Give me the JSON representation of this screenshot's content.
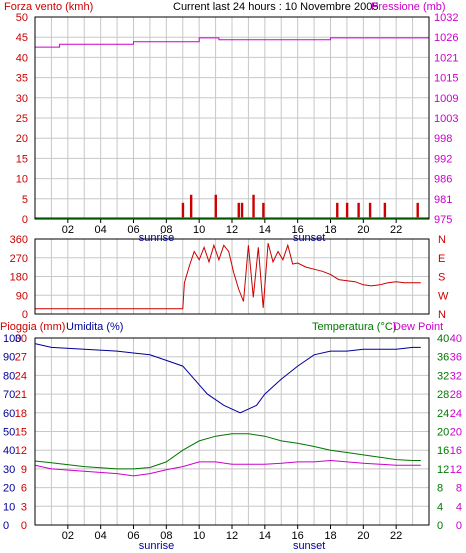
{
  "panel1": {
    "left_label": "Forza vento (kmh)",
    "title": "Current last 24 hours : 10 Novembre 2005",
    "right_label": "Pressione (mb)",
    "left_ticks": [
      "0",
      "5",
      "10",
      "15",
      "20",
      "25",
      "30",
      "35",
      "40",
      "45",
      "50"
    ],
    "right_ticks": [
      "975",
      "981",
      "986",
      "992",
      "998",
      "1003",
      "1009",
      "1015",
      "1021",
      "1026",
      "1032"
    ],
    "x_ticks": [
      "02",
      "04",
      "06",
      "08",
      "10",
      "12",
      "14",
      "16",
      "18",
      "20",
      "22"
    ],
    "sunrise": "sunrise",
    "sunset": "sunset"
  },
  "panel2": {
    "left_ticks": [
      "0",
      "90",
      "180",
      "270",
      "360"
    ],
    "right_ticks": [
      "N",
      "W",
      "S",
      "E",
      "N"
    ]
  },
  "panel3": {
    "pioggia_label": "Pioggia (mm)",
    "umidita_label": "Umidita (%)",
    "temp_label": "Temperatura (°C)",
    "dew_label": "Dew Point",
    "left_ticks_a": [
      "0",
      "10",
      "20",
      "30",
      "40",
      "50",
      "60",
      "70",
      "80",
      "90",
      "100"
    ],
    "left_ticks_b": [
      "0",
      "3",
      "6",
      "9",
      "12",
      "15",
      "18",
      "21",
      "24",
      "27",
      "30"
    ],
    "right_ticks_a": [
      "0",
      "4",
      "8",
      "12",
      "16",
      "20",
      "24",
      "28",
      "32",
      "36",
      "40"
    ],
    "right_ticks_b": [
      "0",
      "4",
      "8",
      "12",
      "16",
      "20",
      "24",
      "28",
      "32",
      "36",
      "40"
    ],
    "x_ticks": [
      "02",
      "04",
      "06",
      "08",
      "10",
      "12",
      "14",
      "16",
      "18",
      "20",
      "22"
    ],
    "sunrise": "sunrise",
    "sunset": "sunset"
  },
  "colors": {
    "wind": "#cc0000",
    "pressure": "#cc00cc",
    "humidity": "#000099",
    "temperature": "#007700",
    "dewpoint": "#cc00cc",
    "rain": "#cc0000",
    "grid": "#c8c8c8"
  },
  "chart_data": [
    {
      "type": "bar",
      "title": "Current last 24 hours : 10 Novembre 2005",
      "xlabel": "",
      "ylabel": "Forza vento (kmh)",
      "ylim": [
        0,
        50
      ],
      "y2label": "Pressione (mb)",
      "y2lim": [
        975,
        1032
      ],
      "series": [
        {
          "name": "Forza vento (kmh)",
          "kind": "bar",
          "x": [
            9.0,
            9.5,
            11.0,
            12.4,
            12.6,
            13.3,
            13.9,
            18.4,
            19.0,
            19.7,
            20.4,
            21.3,
            23.3
          ],
          "values": [
            4,
            6,
            6,
            4,
            4,
            6,
            4,
            4,
            4,
            4,
            4,
            4,
            4
          ]
        },
        {
          "name": "Pressione (mb)",
          "kind": "line",
          "x": [
            0.0,
            1.3,
            1.5,
            3.5,
            5.7,
            6.0,
            9.5,
            10.0,
            11.0,
            11.2,
            17.5,
            18.0,
            24.0
          ],
          "values": [
            1023.5,
            1023.5,
            1024.3,
            1024.3,
            1024.3,
            1025.0,
            1025.0,
            1026.1,
            1026.1,
            1025.6,
            1025.6,
            1026.1,
            1026.1
          ]
        }
      ]
    },
    {
      "type": "line",
      "ylabel": "",
      "ylim": [
        0,
        360
      ],
      "series": [
        {
          "name": "",
          "x": [
            0.0,
            9.0,
            9.1,
            9.4,
            9.7,
            10.0,
            10.3,
            10.6,
            10.9,
            11.2,
            11.5,
            11.8,
            12.1,
            12.4,
            12.7,
            13.0,
            13.3,
            13.6,
            13.9,
            14.2,
            14.5,
            14.8,
            15.1,
            15.4,
            15.7,
            16.0,
            16.5,
            17.0,
            17.5,
            18.0,
            18.5,
            19.0,
            19.5,
            20.0,
            20.5,
            21.0,
            21.5,
            22.0,
            22.5,
            23.0,
            23.5
          ],
          "values": [
            25,
            25,
            150,
            230,
            300,
            260,
            320,
            250,
            330,
            260,
            330,
            300,
            200,
            120,
            60,
            330,
            80,
            320,
            30,
            340,
            250,
            300,
            260,
            330,
            240,
            245,
            225,
            215,
            205,
            190,
            165,
            160,
            155,
            140,
            135,
            140,
            150,
            155,
            150,
            150,
            150
          ]
        }
      ]
    },
    {
      "type": "line",
      "xlabel": "",
      "ylabel": "Umidita (%)",
      "ylim": [
        0,
        100
      ],
      "y2label": "Temperatura (°C)",
      "y2lim": [
        0,
        40
      ],
      "series": [
        {
          "name": "Pioggia (mm)",
          "x": [
            0,
            24
          ],
          "values": [
            0,
            0
          ]
        },
        {
          "name": "Umidita (%)",
          "x": [
            0,
            1.0,
            3.0,
            5.0,
            6.0,
            7.0,
            8.0,
            9.0,
            9.5,
            10.0,
            10.5,
            11.0,
            11.5,
            12.0,
            12.5,
            13.0,
            13.5,
            14.0,
            15.0,
            16.0,
            17.0,
            18.0,
            19.0,
            20.0,
            21.0,
            22.0,
            23.0,
            23.5
          ],
          "values": [
            97,
            95,
            94,
            93,
            92,
            91,
            88,
            85,
            80,
            75,
            70,
            67,
            64,
            62,
            60,
            62,
            64,
            70,
            78,
            85,
            91,
            93,
            93,
            94,
            94,
            94,
            95,
            95
          ]
        },
        {
          "name": "Temperatura (°C)",
          "x": [
            0,
            1.0,
            3.0,
            5.0,
            6.0,
            7.0,
            8.0,
            9.0,
            10.0,
            11.0,
            12.0,
            13.0,
            14.0,
            15.0,
            16.0,
            17.0,
            18.0,
            19.0,
            20.0,
            21.0,
            22.0,
            23.0,
            23.5
          ],
          "values": [
            13.7,
            13.3,
            12.5,
            12.0,
            12.0,
            12.3,
            13.5,
            16.0,
            18.0,
            19.0,
            19.5,
            19.5,
            19.0,
            18.0,
            17.5,
            16.8,
            16.0,
            15.5,
            15.0,
            14.5,
            14.0,
            13.8,
            13.8
          ]
        },
        {
          "name": "Dew Point",
          "x": [
            0,
            1.0,
            3.0,
            5.0,
            6.0,
            7.0,
            8.0,
            9.0,
            10.0,
            11.0,
            12.0,
            13.0,
            14.0,
            15.0,
            16.0,
            17.0,
            18.0,
            19.0,
            20.0,
            21.0,
            22.0,
            23.0,
            23.5
          ],
          "values": [
            12.8,
            12.0,
            11.5,
            11.0,
            10.5,
            11.0,
            11.8,
            12.5,
            13.5,
            13.5,
            13.0,
            13.0,
            13.0,
            13.2,
            13.5,
            13.5,
            13.8,
            13.5,
            13.2,
            13.0,
            12.8,
            12.8,
            12.8
          ]
        }
      ]
    }
  ]
}
